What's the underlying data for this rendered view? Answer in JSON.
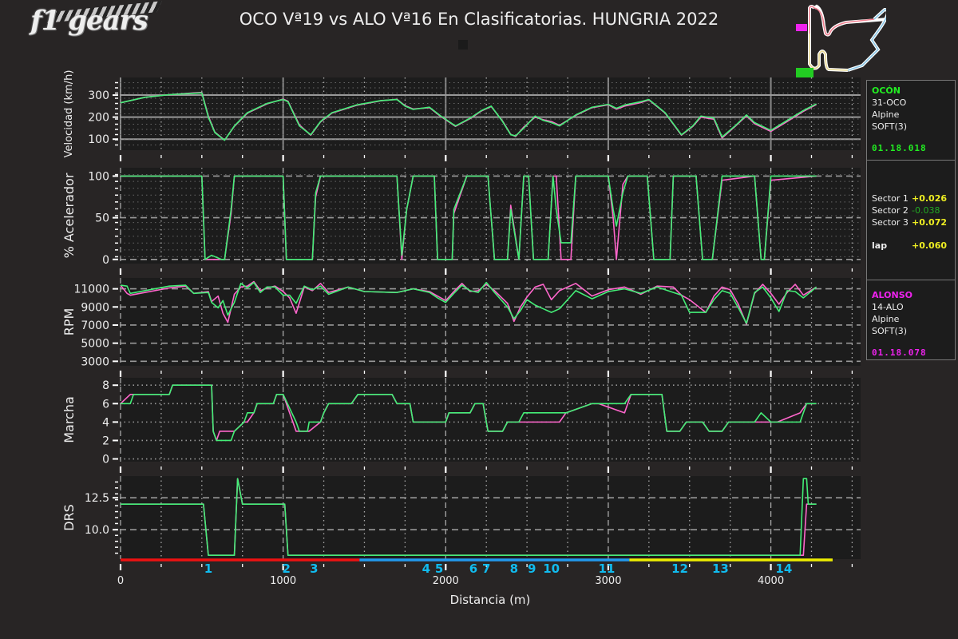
{
  "logo": {
    "text": "f1 gears"
  },
  "header": {
    "title": "OCO Vª19 vs ALO Vª16 En Clasificatorias. HUNGRIA 2022"
  },
  "colors": {
    "driver1": "#44ee77",
    "driver2": "#ff66cc",
    "background": "#282525",
    "plot_bg": "#1c1c1c",
    "sector1": "#ee1111",
    "sector2": "#2299ee",
    "sector3": "#eeee00",
    "turn_label": "#11bbee",
    "positive": "#eeee22",
    "negative": "#22aa22"
  },
  "driver1": {
    "name": "OCÓN",
    "code": "31-OCO",
    "team": "Alpine",
    "tyre": "SOFT(3)",
    "lap_time": "01.18.018",
    "color": "#22ee22"
  },
  "driver2": {
    "name": "ALONSO",
    "code": "14-ALO",
    "team": "Alpine",
    "tyre": "SOFT(3)",
    "lap_time": "01.18.078",
    "color": "#ee22ee"
  },
  "deltas": {
    "sectors": [
      {
        "label": "Sector 1",
        "value": "+0.026",
        "color": "#eeee22"
      },
      {
        "label": "Sector 2",
        "value": "-0.038",
        "color": "#22aa22"
      },
      {
        "label": "Sector 3",
        "value": "+0.072",
        "color": "#eeee22"
      }
    ],
    "lap": {
      "label": "lap",
      "value": "+0.060",
      "color": "#eeee22"
    }
  },
  "xaxis": {
    "label": "Distancia (m)",
    "ticks": [
      "0",
      "1000",
      "2000",
      "3000",
      "4000"
    ],
    "range": [
      0,
      4500
    ]
  },
  "turns": [
    {
      "label": "1",
      "x": 540
    },
    {
      "label": "2",
      "x": 1020
    },
    {
      "label": "3",
      "x": 1190
    },
    {
      "label": "4",
      "x": 1880
    },
    {
      "label": "5",
      "x": 1960
    },
    {
      "label": "6",
      "x": 2170
    },
    {
      "label": "7",
      "x": 2250
    },
    {
      "label": "8",
      "x": 2420
    },
    {
      "label": "9",
      "x": 2530
    },
    {
      "label": "10",
      "x": 2650
    },
    {
      "label": "11",
      "x": 2990
    },
    {
      "label": "12",
      "x": 3440
    },
    {
      "label": "13",
      "x": 3690
    },
    {
      "label": "14",
      "x": 4080
    }
  ],
  "sectors_bar": [
    {
      "from": 0,
      "to": 1470,
      "color": "#ee1111"
    },
    {
      "from": 1470,
      "to": 3130,
      "color": "#2299ee"
    },
    {
      "from": 3130,
      "to": 4380,
      "color": "#eeee00"
    }
  ],
  "chart_data": [
    {
      "type": "line",
      "title": "Velocidad",
      "ylabel": "Velocidad (km/h)",
      "ylim": [
        50,
        380
      ],
      "yticks": [
        100,
        200,
        300
      ],
      "x": [
        0,
        150,
        300,
        450,
        500,
        540,
        580,
        640,
        700,
        780,
        900,
        1000,
        1030,
        1100,
        1170,
        1230,
        1300,
        1450,
        1600,
        1700,
        1750,
        1800,
        1900,
        1970,
        2060,
        2150,
        2220,
        2280,
        2350,
        2400,
        2430,
        2480,
        2550,
        2600,
        2650,
        2700,
        2800,
        2900,
        3000,
        3050,
        3100,
        3200,
        3250,
        3350,
        3450,
        3520,
        3570,
        3650,
        3700,
        3780,
        3850,
        3900,
        4000,
        4100,
        4200,
        4280
      ],
      "series": [
        {
          "name": "OCO",
          "values": [
            265,
            290,
            302,
            308,
            310,
            200,
            130,
            95,
            160,
            220,
            262,
            280,
            270,
            160,
            120,
            180,
            220,
            255,
            275,
            280,
            250,
            235,
            245,
            205,
            160,
            195,
            230,
            250,
            180,
            120,
            115,
            150,
            205,
            185,
            175,
            160,
            210,
            245,
            258,
            240,
            255,
            270,
            280,
            220,
            120,
            160,
            205,
            195,
            110,
            160,
            210,
            175,
            140,
            185,
            230,
            260
          ]
        },
        {
          "name": "ALO",
          "values": [
            265,
            290,
            302,
            310,
            312,
            205,
            132,
            96,
            158,
            218,
            260,
            282,
            272,
            165,
            118,
            178,
            218,
            253,
            274,
            281,
            252,
            237,
            243,
            203,
            158,
            193,
            228,
            248,
            182,
            122,
            112,
            155,
            200,
            188,
            180,
            163,
            208,
            243,
            256,
            236,
            250,
            266,
            278,
            218,
            118,
            158,
            200,
            190,
            105,
            158,
            206,
            170,
            135,
            180,
            226,
            257
          ]
        }
      ]
    },
    {
      "type": "line",
      "title": "Acelerador",
      "ylabel": "% Acelerador",
      "ylim": [
        -5,
        110
      ],
      "yticks": [
        0,
        50,
        100
      ],
      "x": [
        0,
        500,
        520,
        560,
        620,
        640,
        680,
        700,
        1000,
        1020,
        1060,
        1180,
        1200,
        1230,
        1700,
        1730,
        1760,
        1800,
        1930,
        1950,
        2040,
        2050,
        2130,
        2260,
        2300,
        2380,
        2400,
        2450,
        2480,
        2510,
        2540,
        2630,
        2660,
        2680,
        2710,
        2770,
        2800,
        2920,
        3000,
        3030,
        3050,
        3090,
        3120,
        3240,
        3280,
        3310,
        3380,
        3400,
        3540,
        3580,
        3640,
        3700,
        3900,
        3940,
        3960,
        4000,
        4280
      ],
      "series": [
        {
          "name": "OCO",
          "values": [
            100,
            100,
            0,
            5,
            0,
            0,
            60,
            100,
            100,
            0,
            0,
            0,
            80,
            100,
            100,
            5,
            60,
            100,
            100,
            0,
            0,
            60,
            100,
            100,
            0,
            0,
            60,
            0,
            100,
            100,
            0,
            0,
            100,
            60,
            20,
            20,
            100,
            100,
            100,
            60,
            40,
            80,
            100,
            100,
            0,
            0,
            0,
            100,
            100,
            0,
            0,
            100,
            100,
            0,
            0,
            100,
            100
          ]
        },
        {
          "name": "ALO",
          "values": [
            100,
            100,
            0,
            0,
            0,
            0,
            55,
            100,
            100,
            0,
            0,
            0,
            75,
            100,
            100,
            0,
            60,
            100,
            100,
            0,
            0,
            55,
            100,
            100,
            0,
            0,
            65,
            0,
            100,
            100,
            0,
            0,
            100,
            100,
            0,
            0,
            100,
            100,
            100,
            50,
            0,
            90,
            100,
            100,
            0,
            0,
            0,
            100,
            100,
            0,
            0,
            95,
            100,
            0,
            0,
            95,
            100
          ]
        }
      ]
    },
    {
      "type": "line",
      "title": "RPM",
      "ylabel": "RPM",
      "ylim": [
        2500,
        12200
      ],
      "yticks": [
        3000,
        5000,
        7000,
        9000,
        11000
      ],
      "x": [
        0,
        40,
        60,
        300,
        400,
        450,
        540,
        560,
        600,
        630,
        660,
        700,
        740,
        780,
        820,
        860,
        900,
        950,
        1000,
        1040,
        1080,
        1130,
        1180,
        1230,
        1280,
        1400,
        1500,
        1700,
        1800,
        1900,
        1950,
        2000,
        2050,
        2100,
        2150,
        2200,
        2250,
        2300,
        2380,
        2420,
        2460,
        2500,
        2550,
        2600,
        2650,
        2700,
        2800,
        2900,
        3000,
        3100,
        3200,
        3300,
        3400,
        3450,
        3500,
        3600,
        3650,
        3700,
        3750,
        3800,
        3850,
        3900,
        3950,
        4000,
        4050,
        4100,
        4150,
        4200,
        4280
      ],
      "series": [
        {
          "name": "OCO",
          "values": [
            11400,
            11300,
            10500,
            11300,
            11400,
            10500,
            10600,
            9500,
            8900,
            9700,
            8100,
            9500,
            11600,
            11100,
            11700,
            10600,
            11200,
            11200,
            10300,
            10300,
            9400,
            11300,
            10900,
            11300,
            10400,
            11200,
            10700,
            10600,
            11000,
            10600,
            10000,
            9500,
            10500,
            11400,
            10800,
            10600,
            11700,
            10600,
            9000,
            7700,
            8600,
            9800,
            9200,
            8800,
            8400,
            8800,
            10800,
            9900,
            10700,
            11000,
            10500,
            11200,
            10600,
            10300,
            8400,
            8400,
            9800,
            10800,
            10500,
            8900,
            7200,
            10600,
            11200,
            10000,
            8500,
            10800,
            10700,
            10000,
            11200
          ]
        },
        {
          "name": "ALO",
          "values": [
            11400,
            10500,
            10300,
            11100,
            11300,
            10500,
            10700,
            9600,
            10200,
            8300,
            7300,
            10400,
            11200,
            11300,
            11800,
            10800,
            11100,
            11300,
            10700,
            10000,
            8300,
            11200,
            10800,
            11600,
            10600,
            11200,
            10700,
            10600,
            11000,
            10700,
            10200,
            9700,
            10700,
            11600,
            10700,
            10800,
            11500,
            10800,
            9400,
            7400,
            9000,
            10100,
            11200,
            11500,
            9800,
            10800,
            11600,
            10200,
            10900,
            11200,
            10400,
            11300,
            11200,
            10300,
            9800,
            8400,
            10200,
            11200,
            10900,
            9300,
            7100,
            10500,
            11500,
            10500,
            9300,
            10600,
            11500,
            10300,
            11200
          ]
        }
      ]
    },
    {
      "type": "line",
      "title": "Marcha",
      "ylabel": "Marcha",
      "ylim": [
        -0.3,
        8.8
      ],
      "yticks": [
        0,
        2,
        4,
        6,
        8
      ],
      "x": [
        0,
        60,
        80,
        300,
        320,
        560,
        570,
        590,
        610,
        680,
        700,
        760,
        780,
        820,
        840,
        940,
        960,
        1000,
        1080,
        1100,
        1150,
        1160,
        1230,
        1250,
        1280,
        1360,
        1420,
        1460,
        1520,
        1670,
        1700,
        1780,
        1800,
        2000,
        2020,
        2150,
        2180,
        2230,
        2260,
        2350,
        2380,
        2450,
        2480,
        2700,
        2740,
        2900,
        2940,
        3100,
        3140,
        3330,
        3360,
        3440,
        3480,
        3580,
        3620,
        3700,
        3740,
        3900,
        3940,
        4000,
        4040,
        4180,
        4220,
        4280
      ],
      "series": [
        {
          "name": "OCO",
          "values": [
            6,
            6,
            7,
            7,
            8,
            8,
            3,
            2,
            2,
            2,
            3,
            4,
            5,
            5,
            6,
            6,
            7,
            7,
            4,
            3,
            3,
            4,
            4,
            5,
            6,
            6,
            6,
            7,
            7,
            7,
            6,
            6,
            4,
            4,
            5,
            5,
            6,
            6,
            3,
            3,
            4,
            4,
            5,
            5,
            5,
            6,
            6,
            6,
            7,
            7,
            3,
            3,
            4,
            4,
            3,
            3,
            4,
            4,
            5,
            4,
            4,
            4,
            6,
            6
          ]
        },
        {
          "name": "ALO",
          "values": [
            6,
            7,
            7,
            7,
            8,
            8,
            3,
            2,
            3,
            3,
            3,
            4,
            4,
            5,
            6,
            6,
            7,
            7,
            3,
            3,
            3,
            3,
            4,
            5,
            6,
            6,
            6,
            7,
            7,
            7,
            6,
            6,
            4,
            4,
            5,
            5,
            6,
            6,
            3,
            3,
            4,
            4,
            4,
            4,
            5,
            6,
            6,
            5,
            7,
            7,
            3,
            3,
            4,
            4,
            3,
            3,
            4,
            4,
            4,
            4,
            4,
            5,
            6,
            6
          ]
        }
      ]
    },
    {
      "type": "line",
      "title": "DRS",
      "ylabel": "DRS",
      "ylim": [
        7.7,
        14.2
      ],
      "yticks": [
        10.0,
        12.5
      ],
      "x": [
        0,
        500,
        510,
        540,
        700,
        720,
        750,
        1010,
        1030,
        1060,
        4180,
        4200,
        4220,
        4230,
        4280
      ],
      "series": [
        {
          "name": "OCO",
          "values": [
            12,
            12,
            12,
            8,
            8,
            14,
            12,
            12,
            8,
            8,
            8,
            14,
            14,
            12,
            12
          ]
        },
        {
          "name": "ALO",
          "values": [
            12,
            12,
            12,
            8,
            8,
            14,
            12,
            12,
            8,
            8,
            8,
            8,
            12,
            12,
            12
          ]
        }
      ]
    }
  ]
}
